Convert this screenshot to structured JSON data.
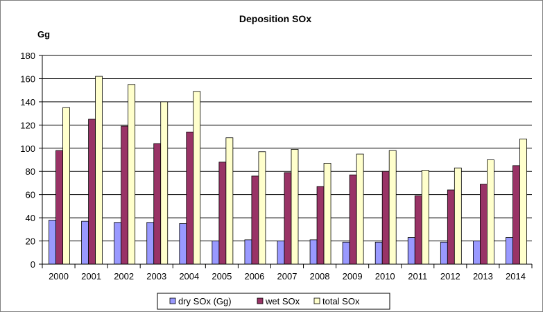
{
  "chart_data": {
    "type": "bar",
    "title": "Deposition SOx",
    "ylabel": "Gg",
    "xlabel": "",
    "ylim": [
      0,
      180
    ],
    "yticks": [
      0,
      20,
      40,
      60,
      80,
      100,
      120,
      140,
      160,
      180
    ],
    "grid": true,
    "legend_position": "bottom",
    "categories": [
      "2000",
      "2001",
      "2002",
      "2003",
      "2004",
      "2005",
      "2006",
      "2007",
      "2008",
      "2009",
      "2010",
      "2011",
      "2012",
      "2013",
      "2014"
    ],
    "series": [
      {
        "name": "dry SOx (Gg)",
        "color": "#9999ff",
        "values": [
          38,
          37,
          36,
          36,
          35,
          20,
          21,
          20,
          21,
          19,
          19,
          23,
          19,
          20,
          23
        ]
      },
      {
        "name": "wet SOx",
        "color": "#993366",
        "values": [
          98,
          125,
          119,
          104,
          114,
          88,
          76,
          79,
          67,
          77,
          80,
          59,
          64,
          69,
          85
        ]
      },
      {
        "name": "total SOx",
        "color": "#ffffcc",
        "values": [
          135,
          162,
          155,
          140,
          149,
          109,
          97,
          99,
          87,
          95,
          98,
          81,
          83,
          90,
          108
        ]
      }
    ]
  }
}
